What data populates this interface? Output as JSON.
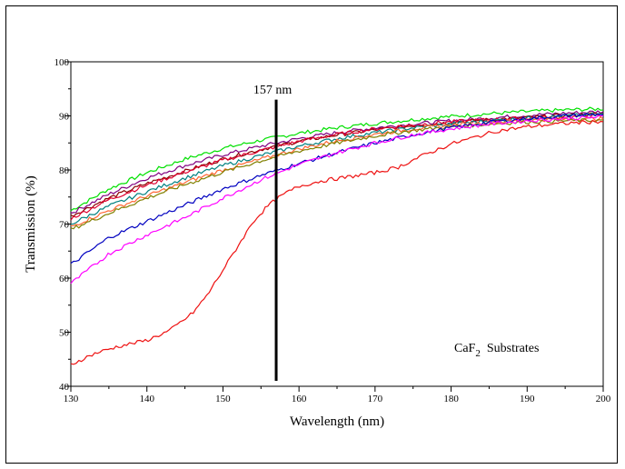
{
  "chart_data": {
    "type": "line",
    "title": "",
    "xlabel": "Wavelength (nm)",
    "ylabel": "Transmission (%)",
    "xlim": [
      130,
      200
    ],
    "ylim": [
      40,
      100
    ],
    "x_ticks": [
      130,
      140,
      150,
      160,
      170,
      180,
      190,
      200
    ],
    "y_ticks": [
      40,
      50,
      60,
      70,
      80,
      90,
      100
    ],
    "grid": false,
    "legend": "none",
    "annotations": [
      {
        "id": "marker",
        "text": "157 nm",
        "x": 157,
        "line_from": 41,
        "line_to": 93
      },
      {
        "id": "substrate",
        "text_main": "CaF",
        "text_sub": "2",
        "text_rest": "  Substrates"
      }
    ],
    "series": [
      {
        "color": "#00e000",
        "x": [
          130,
          135,
          140,
          145,
          150,
          155,
          160,
          165,
          170,
          175,
          180,
          185,
          190,
          195,
          200
        ],
        "values": [
          72.5,
          76.5,
          79.5,
          82,
          84,
          85.5,
          86.8,
          87.8,
          88.6,
          89.3,
          89.9,
          90.4,
          90.8,
          91.1,
          91.3
        ]
      },
      {
        "color": "#800080",
        "x": [
          130,
          135,
          140,
          145,
          150,
          155,
          160,
          165,
          170,
          175,
          180,
          185,
          190,
          195,
          200
        ],
        "values": [
          72,
          75.5,
          78.5,
          80.8,
          82.8,
          84.4,
          85.8,
          86.9,
          87.8,
          88.5,
          89.1,
          89.6,
          90.1,
          90.5,
          90.8
        ]
      },
      {
        "color": "#8b0000",
        "x": [
          130,
          135,
          140,
          145,
          150,
          155,
          160,
          165,
          170,
          175,
          180,
          185,
          190,
          195,
          200
        ],
        "values": [
          71.5,
          74.8,
          77.5,
          79.8,
          82,
          83.8,
          85.3,
          86.5,
          87.4,
          88.2,
          88.8,
          89.3,
          89.7,
          90.1,
          90.4
        ]
      },
      {
        "color": "#e00030",
        "x": [
          130,
          135,
          140,
          145,
          150,
          155,
          160,
          165,
          170,
          175,
          180,
          185,
          190,
          195,
          200
        ],
        "values": [
          71,
          74.5,
          77.2,
          79.6,
          81.8,
          83.6,
          85.3,
          86.6,
          87.6,
          88.3,
          88.9,
          89.3,
          89.6,
          89.8,
          90
        ]
      },
      {
        "color": "#008080",
        "x": [
          130,
          135,
          140,
          145,
          150,
          155,
          160,
          165,
          170,
          175,
          180,
          185,
          190,
          195,
          200
        ],
        "values": [
          70,
          73.3,
          76,
          78.5,
          80.8,
          82.7,
          84.4,
          85.8,
          86.9,
          87.8,
          88.5,
          89.1,
          89.6,
          90,
          90.3
        ]
      },
      {
        "color": "#ff6633",
        "x": [
          130,
          135,
          140,
          145,
          150,
          155,
          160,
          165,
          170,
          175,
          180,
          185,
          190,
          195,
          200
        ],
        "values": [
          69.5,
          72.5,
          75.2,
          77.7,
          80,
          82,
          83.9,
          85.4,
          86.6,
          87.6,
          88.3,
          88.8,
          89.2,
          89.4,
          89.5
        ]
      },
      {
        "color": "#808000",
        "x": [
          130,
          135,
          140,
          145,
          150,
          155,
          160,
          165,
          170,
          175,
          180,
          185,
          190,
          195,
          200
        ],
        "values": [
          69,
          72,
          74.8,
          77.3,
          79.6,
          81.7,
          83.5,
          85,
          86.3,
          87.3,
          88,
          88.5,
          88.9,
          89.1,
          89.2
        ]
      },
      {
        "color": "#0000c0",
        "x": [
          130,
          135,
          140,
          145,
          150,
          155,
          160,
          165,
          170,
          175,
          180,
          185,
          190,
          195,
          200
        ],
        "values": [
          62.5,
          67.5,
          70.5,
          73.5,
          76.5,
          79,
          81.2,
          83.2,
          85,
          86.5,
          87.8,
          88.8,
          89.5,
          90,
          90.3
        ]
      },
      {
        "color": "#ff00ff",
        "x": [
          130,
          135,
          140,
          145,
          150,
          155,
          160,
          165,
          170,
          175,
          180,
          185,
          190,
          195,
          200
        ],
        "values": [
          59,
          64.5,
          68,
          71.2,
          74.8,
          78.2,
          81,
          83.2,
          85,
          86.5,
          87.6,
          88.5,
          89.1,
          89.5,
          89.8
        ]
      },
      {
        "color": "#ee1111",
        "x": [
          130,
          133,
          136,
          140,
          143,
          146,
          148,
          150,
          152,
          154,
          156,
          158,
          160,
          163,
          166,
          170,
          173,
          176,
          180,
          183,
          186,
          190,
          193,
          196,
          200
        ],
        "values": [
          44,
          46,
          47.3,
          48.5,
          50.3,
          53.5,
          57,
          61.5,
          66,
          70.5,
          73.5,
          75.5,
          77,
          78,
          78.6,
          79.5,
          80.5,
          82.5,
          84.8,
          86,
          87.2,
          88,
          88.4,
          88.7,
          89
        ]
      }
    ]
  }
}
